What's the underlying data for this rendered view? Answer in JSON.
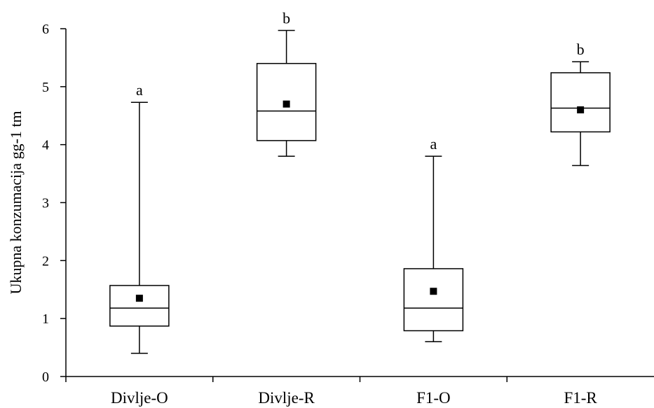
{
  "chart_data": {
    "type": "box",
    "ylabel": "Ukupna konzumacija gg-1 tm",
    "xlabel": "",
    "ylim": [
      0,
      6
    ],
    "yticks": [
      "0",
      "1",
      "2",
      "3",
      "4",
      "5",
      "6"
    ],
    "categories": [
      "Divlje-O",
      "Divlje-R",
      "F1-O",
      "F1-R"
    ],
    "boxes": [
      {
        "category": "Divlje-O",
        "min": 0.4,
        "q1": 0.87,
        "median": 1.18,
        "q3": 1.57,
        "max": 4.73,
        "mean": 1.35,
        "letter": "a"
      },
      {
        "category": "Divlje-R",
        "min": 3.8,
        "q1": 4.07,
        "median": 4.58,
        "q3": 5.4,
        "max": 5.97,
        "mean": 4.7,
        "letter": "b"
      },
      {
        "category": "F1-O",
        "min": 0.6,
        "q1": 0.79,
        "median": 1.18,
        "q3": 1.86,
        "max": 3.8,
        "mean": 1.47,
        "letter": "a"
      },
      {
        "category": "F1-R",
        "min": 3.64,
        "q1": 4.22,
        "median": 4.63,
        "q3": 5.24,
        "max": 5.43,
        "mean": 4.6,
        "letter": "b"
      }
    ],
    "grid": false,
    "legend": "none"
  }
}
